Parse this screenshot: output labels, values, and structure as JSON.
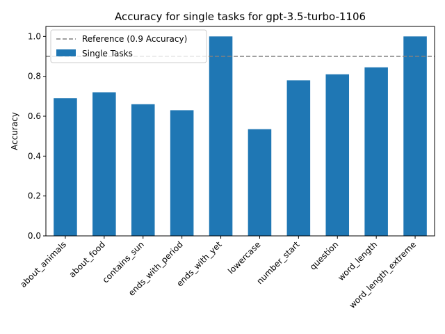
{
  "chart_data": {
    "type": "bar",
    "title": "Accuracy for single tasks for gpt-3.5-turbo-1106",
    "xlabel": "",
    "ylabel": "Accuracy",
    "ylim": [
      0,
      1.05
    ],
    "yticks": [
      "0.0",
      "0.2",
      "0.4",
      "0.6",
      "0.8",
      "1.0"
    ],
    "categories": [
      "about_animals",
      "about_food",
      "contains_sun",
      "ends_with_period",
      "ends_with_yet",
      "lowercase",
      "number_start",
      "question",
      "word_length",
      "word_length_extreme"
    ],
    "series": [
      {
        "name": "Single Tasks",
        "color": "#1f77b4",
        "values": [
          0.69,
          0.72,
          0.66,
          0.63,
          1.0,
          0.535,
          0.78,
          0.81,
          0.845,
          1.0
        ]
      }
    ],
    "reference_line": {
      "label": "Reference (0.9 Accuracy)",
      "value": 0.9,
      "color": "#808080",
      "style": "dashed"
    },
    "grid": false,
    "legend_position": "top-left"
  }
}
